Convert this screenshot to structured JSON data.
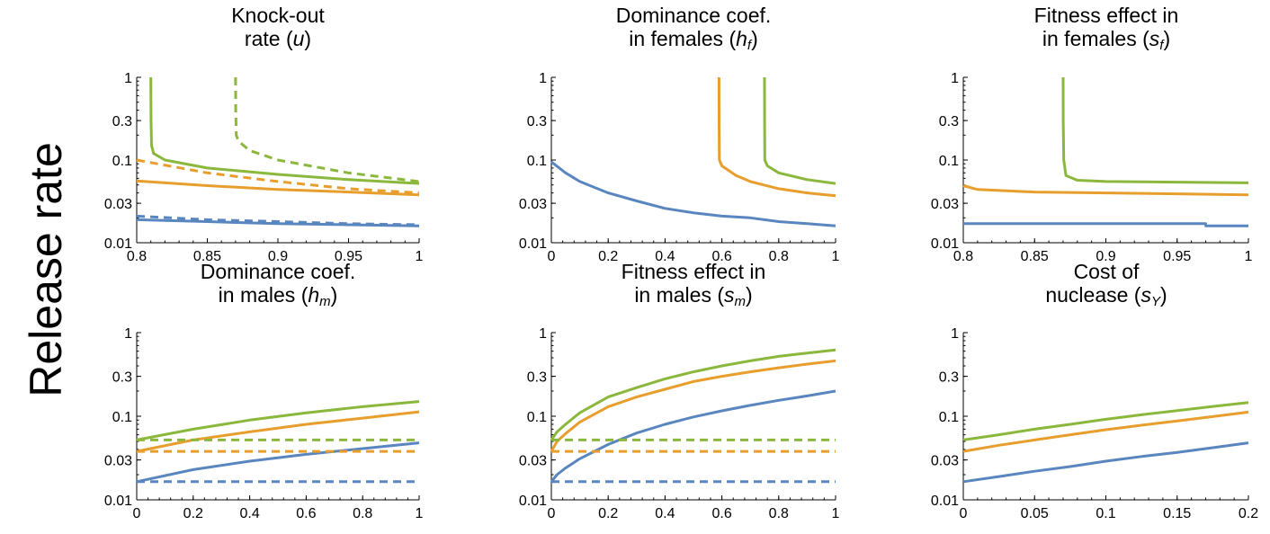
{
  "figure": {
    "ylabel": "Release rate",
    "colors": {
      "green": "#8BB83C",
      "orange": "#E89E2C",
      "blue": "#5A86C0"
    }
  },
  "chart_data": [
    {
      "type": "line",
      "id": "u",
      "title_lines": [
        [
          {
            "t": "Knock-out"
          }
        ],
        [
          {
            "t": "rate ("
          },
          {
            "t": "u",
            "i": true
          },
          {
            "t": ")"
          }
        ]
      ],
      "xlim": [
        0.8,
        1
      ],
      "ylim": [
        0.01,
        1
      ],
      "yscale": "log",
      "xticks": [
        0.8,
        0.85,
        0.9,
        0.95,
        1
      ],
      "xtick_labels": [
        "0.8",
        "0.85",
        "0.9",
        "0.95",
        "1"
      ],
      "yticks": [
        0.01,
        0.03,
        0.1,
        0.3,
        1
      ],
      "ytick_labels": [
        "0.01",
        "0.03",
        "0.1",
        "0.3",
        "1"
      ],
      "series": [
        {
          "color": "green",
          "dash": false,
          "x": [
            0.81,
            0.8101,
            0.8105,
            0.812,
            0.82,
            0.85,
            0.9,
            0.95,
            1
          ],
          "y": [
            1,
            0.3,
            0.15,
            0.12,
            0.1,
            0.08,
            0.067,
            0.058,
            0.052
          ]
        },
        {
          "color": "green",
          "dash": true,
          "x": [
            0.87,
            0.8701,
            0.8705,
            0.872,
            0.88,
            0.9,
            0.95,
            1
          ],
          "y": [
            1,
            0.4,
            0.2,
            0.17,
            0.13,
            0.1,
            0.07,
            0.055
          ]
        },
        {
          "color": "orange",
          "dash": true,
          "x": [
            0.8,
            0.85,
            0.9,
            0.95,
            1
          ],
          "y": [
            0.1,
            0.07,
            0.055,
            0.045,
            0.04
          ]
        },
        {
          "color": "orange",
          "dash": false,
          "x": [
            0.8,
            0.85,
            0.9,
            0.95,
            1
          ],
          "y": [
            0.056,
            0.049,
            0.044,
            0.041,
            0.038
          ]
        },
        {
          "color": "blue",
          "dash": true,
          "x": [
            0.8,
            0.85,
            0.9,
            0.95,
            1
          ],
          "y": [
            0.021,
            0.019,
            0.018,
            0.017,
            0.0165
          ]
        },
        {
          "color": "blue",
          "dash": false,
          "x": [
            0.8,
            0.85,
            0.9,
            0.95,
            1
          ],
          "y": [
            0.019,
            0.018,
            0.017,
            0.0165,
            0.016
          ]
        }
      ]
    },
    {
      "type": "line",
      "id": "hf",
      "title_lines": [
        [
          {
            "t": "Dominance coef."
          }
        ],
        [
          {
            "t": "in females ("
          },
          {
            "t": "h",
            "i": true
          },
          {
            "t": "f",
            "i": true,
            "sub": true
          },
          {
            "t": ")"
          }
        ]
      ],
      "xlim": [
        0,
        1
      ],
      "ylim": [
        0.01,
        1
      ],
      "yscale": "log",
      "xticks": [
        0,
        0.2,
        0.4,
        0.6,
        0.8,
        1
      ],
      "xtick_labels": [
        "0",
        "0.2",
        "0.4",
        "0.6",
        "0.8",
        "1"
      ],
      "yticks": [
        0.01,
        0.03,
        0.1,
        0.3,
        1
      ],
      "ytick_labels": [
        "0.01",
        "0.03",
        "0.1",
        "0.3",
        "1"
      ],
      "series": [
        {
          "color": "blue",
          "dash": false,
          "x": [
            0,
            0.05,
            0.1,
            0.2,
            0.3,
            0.4,
            0.5,
            0.6,
            0.7,
            0.8,
            0.9,
            1
          ],
          "y": [
            0.095,
            0.07,
            0.055,
            0.04,
            0.032,
            0.026,
            0.023,
            0.021,
            0.02,
            0.018,
            0.017,
            0.016
          ]
        },
        {
          "color": "orange",
          "dash": false,
          "x": [
            0.59,
            0.5902,
            0.591,
            0.6,
            0.65,
            0.7,
            0.8,
            0.9,
            1
          ],
          "y": [
            1,
            0.3,
            0.1,
            0.085,
            0.065,
            0.055,
            0.045,
            0.04,
            0.037
          ]
        },
        {
          "color": "green",
          "dash": false,
          "x": [
            0.75,
            0.7502,
            0.751,
            0.76,
            0.8,
            0.9,
            1
          ],
          "y": [
            1,
            0.3,
            0.1,
            0.085,
            0.07,
            0.058,
            0.052
          ]
        }
      ]
    },
    {
      "type": "line",
      "id": "sf",
      "title_lines": [
        [
          {
            "t": "Fitness effect in"
          }
        ],
        [
          {
            "t": "in females ("
          },
          {
            "t": "s",
            "i": true
          },
          {
            "t": "f",
            "i": true,
            "sub": true
          },
          {
            "t": ")"
          }
        ]
      ],
      "xlim": [
        0.8,
        1
      ],
      "ylim": [
        0.01,
        1
      ],
      "yscale": "log",
      "xticks": [
        0.8,
        0.85,
        0.9,
        0.95,
        1
      ],
      "xtick_labels": [
        "0.8",
        "0.85",
        "0.9",
        "0.95",
        "1"
      ],
      "yticks": [
        0.01,
        0.03,
        0.1,
        0.3,
        1
      ],
      "ytick_labels": [
        "0.01",
        "0.03",
        "0.1",
        "0.3",
        "1"
      ],
      "series": [
        {
          "color": "green",
          "dash": false,
          "x": [
            0.87,
            0.8701,
            0.8705,
            0.872,
            0.88,
            0.9,
            0.95,
            1
          ],
          "y": [
            1,
            0.3,
            0.1,
            0.065,
            0.057,
            0.055,
            0.054,
            0.053
          ]
        },
        {
          "color": "orange",
          "dash": false,
          "x": [
            0.8,
            0.81,
            0.85,
            0.9,
            0.95,
            1
          ],
          "y": [
            0.049,
            0.044,
            0.041,
            0.04,
            0.039,
            0.038
          ]
        },
        {
          "color": "blue",
          "dash": false,
          "x": [
            0.8,
            0.9,
            0.97,
            0.9701,
            1
          ],
          "y": [
            0.017,
            0.017,
            0.017,
            0.016,
            0.016
          ]
        }
      ]
    },
    {
      "type": "line",
      "id": "hm",
      "title_lines": [
        [
          {
            "t": "Dominance coef."
          }
        ],
        [
          {
            "t": "in males ("
          },
          {
            "t": "h",
            "i": true
          },
          {
            "t": "m",
            "i": true,
            "sub": true
          },
          {
            "t": ")"
          }
        ]
      ],
      "xlim": [
        0,
        1
      ],
      "ylim": [
        0.01,
        1
      ],
      "yscale": "log",
      "xticks": [
        0,
        0.2,
        0.4,
        0.6,
        0.8,
        1
      ],
      "xtick_labels": [
        "0",
        "0.2",
        "0.4",
        "0.6",
        "0.8",
        "1"
      ],
      "yticks": [
        0.01,
        0.03,
        0.1,
        0.3,
        1
      ],
      "ytick_labels": [
        "0.01",
        "0.03",
        "0.1",
        "0.3",
        "1"
      ],
      "series": [
        {
          "color": "green",
          "dash": false,
          "x": [
            0,
            0.2,
            0.4,
            0.6,
            0.8,
            1
          ],
          "y": [
            0.052,
            0.07,
            0.09,
            0.11,
            0.13,
            0.15
          ]
        },
        {
          "color": "orange",
          "dash": false,
          "x": [
            0,
            0.2,
            0.4,
            0.6,
            0.8,
            1
          ],
          "y": [
            0.038,
            0.052,
            0.065,
            0.08,
            0.095,
            0.113
          ]
        },
        {
          "color": "blue",
          "dash": false,
          "x": [
            0,
            0.2,
            0.4,
            0.6,
            0.8,
            1
          ],
          "y": [
            0.0165,
            0.023,
            0.029,
            0.035,
            0.041,
            0.048
          ]
        },
        {
          "color": "green",
          "dash": true,
          "x": [
            0,
            1
          ],
          "y": [
            0.052,
            0.052
          ]
        },
        {
          "color": "orange",
          "dash": true,
          "x": [
            0,
            1
          ],
          "y": [
            0.038,
            0.038
          ]
        },
        {
          "color": "blue",
          "dash": true,
          "x": [
            0,
            1
          ],
          "y": [
            0.0165,
            0.0165
          ]
        }
      ]
    },
    {
      "type": "line",
      "id": "sm",
      "title_lines": [
        [
          {
            "t": "Fitness effect in"
          }
        ],
        [
          {
            "t": "in males ("
          },
          {
            "t": "s",
            "i": true
          },
          {
            "t": "m",
            "i": true,
            "sub": true
          },
          {
            "t": ")"
          }
        ]
      ],
      "xlim": [
        0,
        1
      ],
      "ylim": [
        0.01,
        1
      ],
      "yscale": "log",
      "xticks": [
        0,
        0.2,
        0.4,
        0.6,
        0.8,
        1
      ],
      "xtick_labels": [
        "0",
        "0.2",
        "0.4",
        "0.6",
        "0.8",
        "1"
      ],
      "yticks": [
        0.01,
        0.03,
        0.1,
        0.3,
        1
      ],
      "ytick_labels": [
        "0.01",
        "0.03",
        "0.1",
        "0.3",
        "1"
      ],
      "series": [
        {
          "color": "green",
          "dash": false,
          "x": [
            0,
            0.02,
            0.05,
            0.1,
            0.2,
            0.3,
            0.4,
            0.5,
            0.6,
            0.7,
            0.8,
            0.9,
            1
          ],
          "y": [
            0.052,
            0.065,
            0.08,
            0.11,
            0.17,
            0.22,
            0.28,
            0.34,
            0.4,
            0.46,
            0.52,
            0.57,
            0.62
          ]
        },
        {
          "color": "orange",
          "dash": false,
          "x": [
            0,
            0.02,
            0.05,
            0.1,
            0.2,
            0.3,
            0.4,
            0.5,
            0.6,
            0.7,
            0.8,
            0.9,
            1
          ],
          "y": [
            0.038,
            0.05,
            0.062,
            0.085,
            0.13,
            0.17,
            0.21,
            0.26,
            0.3,
            0.34,
            0.38,
            0.42,
            0.46
          ]
        },
        {
          "color": "blue",
          "dash": false,
          "x": [
            0,
            0.02,
            0.05,
            0.1,
            0.2,
            0.3,
            0.4,
            0.5,
            0.6,
            0.7,
            0.8,
            0.9,
            1
          ],
          "y": [
            0.0165,
            0.02,
            0.024,
            0.031,
            0.046,
            0.063,
            0.08,
            0.098,
            0.116,
            0.135,
            0.155,
            0.175,
            0.2
          ]
        },
        {
          "color": "green",
          "dash": true,
          "x": [
            0,
            1
          ],
          "y": [
            0.052,
            0.052
          ]
        },
        {
          "color": "orange",
          "dash": true,
          "x": [
            0,
            1
          ],
          "y": [
            0.038,
            0.038
          ]
        },
        {
          "color": "blue",
          "dash": true,
          "x": [
            0,
            1
          ],
          "y": [
            0.0165,
            0.0165
          ]
        }
      ]
    },
    {
      "type": "line",
      "id": "sY",
      "title_lines": [
        [
          {
            "t": "Cost of"
          }
        ],
        [
          {
            "t": "nuclease ("
          },
          {
            "t": "s",
            "i": true
          },
          {
            "t": "Y",
            "i": true,
            "sub": true
          },
          {
            "t": ")"
          }
        ]
      ],
      "xlim": [
        0,
        0.2
      ],
      "ylim": [
        0.01,
        1
      ],
      "yscale": "log",
      "xticks": [
        0,
        0.05,
        0.1,
        0.15,
        0.2
      ],
      "xtick_labels": [
        "0",
        "0.05",
        "0.1",
        "0.15",
        "0.2"
      ],
      "yticks": [
        0.01,
        0.03,
        0.1,
        0.3,
        1
      ],
      "ytick_labels": [
        "0.01",
        "0.03",
        "0.1",
        "0.3",
        "1"
      ],
      "series": [
        {
          "color": "green",
          "dash": false,
          "x": [
            0,
            0.025,
            0.05,
            0.075,
            0.1,
            0.125,
            0.15,
            0.175,
            0.2
          ],
          "y": [
            0.052,
            0.06,
            0.07,
            0.08,
            0.092,
            0.104,
            0.117,
            0.131,
            0.146
          ]
        },
        {
          "color": "orange",
          "dash": false,
          "x": [
            0,
            0.025,
            0.05,
            0.075,
            0.1,
            0.125,
            0.15,
            0.175,
            0.2
          ],
          "y": [
            0.038,
            0.045,
            0.052,
            0.06,
            0.069,
            0.078,
            0.088,
            0.099,
            0.112
          ]
        },
        {
          "color": "blue",
          "dash": false,
          "x": [
            0,
            0.025,
            0.05,
            0.075,
            0.1,
            0.125,
            0.15,
            0.175,
            0.2
          ],
          "y": [
            0.0165,
            0.019,
            0.022,
            0.025,
            0.029,
            0.033,
            0.037,
            0.042,
            0.048
          ]
        }
      ]
    }
  ]
}
